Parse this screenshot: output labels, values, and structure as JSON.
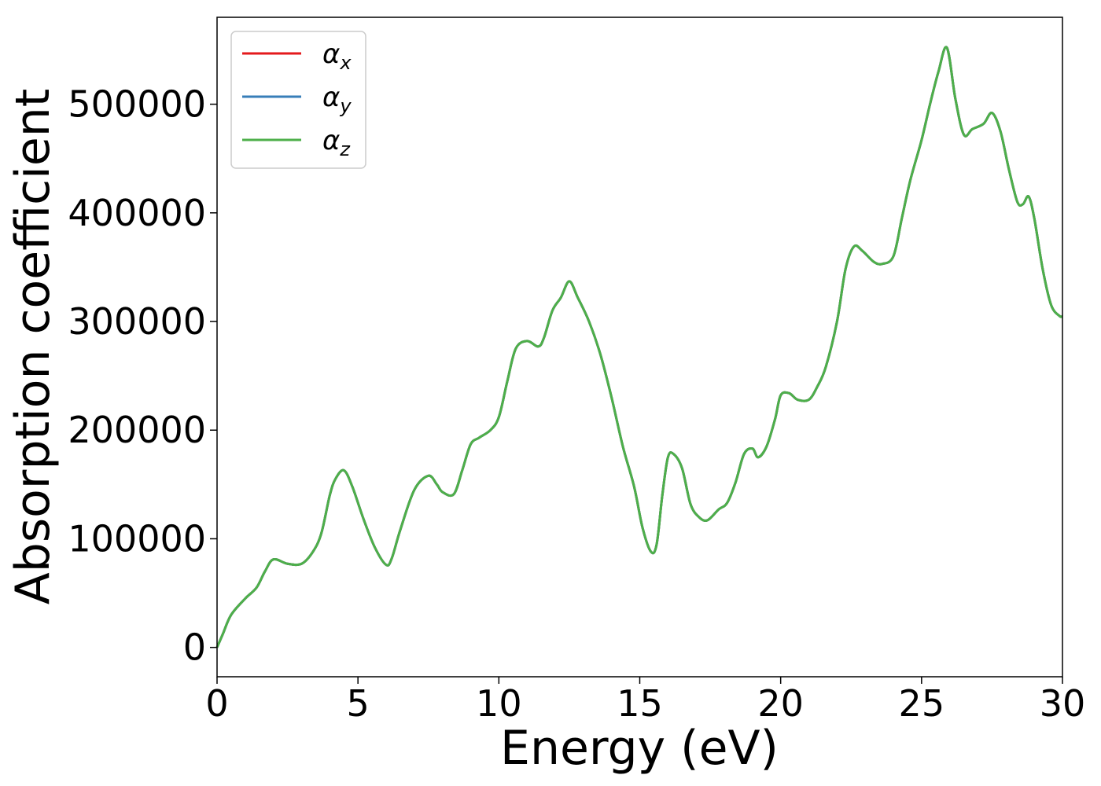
{
  "chart_data": {
    "type": "line",
    "xlabel": "Energy (eV)",
    "ylabel": "Absorption coefficient",
    "xlim": [
      0,
      30
    ],
    "ylim": [
      -27000,
      580000
    ],
    "xticks": [
      0,
      5,
      10,
      15,
      20,
      25,
      30
    ],
    "yticks": [
      0,
      100000,
      200000,
      300000,
      400000,
      500000
    ],
    "grid": false,
    "legend_position": "top-left",
    "x": [
      0,
      0.2,
      0.5,
      1.0,
      1.4,
      1.7,
      2.0,
      2.5,
      3.0,
      3.4,
      3.7,
      4.0,
      4.2,
      4.5,
      4.8,
      5.2,
      5.6,
      6.0,
      6.2,
      6.5,
      7.0,
      7.5,
      7.8,
      8.0,
      8.4,
      8.7,
      9.0,
      9.3,
      9.7,
      10.0,
      10.3,
      10.6,
      11.0,
      11.4,
      11.6,
      11.9,
      12.2,
      12.5,
      12.8,
      13.2,
      13.6,
      14.0,
      14.4,
      14.8,
      15.1,
      15.4,
      15.6,
      15.8,
      16.0,
      16.2,
      16.5,
      16.8,
      17.1,
      17.4,
      17.8,
      18.1,
      18.4,
      18.7,
      19.0,
      19.2,
      19.5,
      19.8,
      20.0,
      20.3,
      20.6,
      21.0,
      21.3,
      21.6,
      22.0,
      22.3,
      22.6,
      22.9,
      23.3,
      23.6,
      24.0,
      24.3,
      24.6,
      25.0,
      25.3,
      25.6,
      25.9,
      26.2,
      26.5,
      26.8,
      27.2,
      27.5,
      27.8,
      28.1,
      28.4,
      28.6,
      28.8,
      29.0,
      29.3,
      29.6,
      29.9,
      30.0
    ],
    "series": [
      {
        "name": "αx",
        "color": "#e41a1c",
        "values": [
          0,
          12000,
          30000,
          45000,
          55000,
          70000,
          81000,
          77000,
          77000,
          88000,
          105000,
          140000,
          155000,
          163000,
          148000,
          118000,
          92000,
          76000,
          82000,
          108000,
          145000,
          158000,
          150000,
          143000,
          141000,
          163000,
          187000,
          193000,
          200000,
          212000,
          245000,
          275000,
          282000,
          277000,
          285000,
          310000,
          322000,
          337000,
          322000,
          300000,
          270000,
          230000,
          185000,
          148000,
          110000,
          88000,
          95000,
          140000,
          175000,
          178000,
          165000,
          132000,
          120000,
          117000,
          127000,
          133000,
          152000,
          178000,
          183000,
          175000,
          185000,
          210000,
          232000,
          234000,
          228000,
          228000,
          240000,
          258000,
          300000,
          348000,
          369000,
          365000,
          355000,
          353000,
          360000,
          395000,
          430000,
          467000,
          500000,
          530000,
          552000,
          505000,
          472000,
          477000,
          482000,
          492000,
          475000,
          440000,
          410000,
          408000,
          415000,
          395000,
          348000,
          315000,
          305000,
          305000
        ]
      },
      {
        "name": "αy",
        "color": "#377eb8",
        "values": [
          0,
          12000,
          30000,
          45000,
          55000,
          70000,
          81000,
          77000,
          77000,
          88000,
          105000,
          140000,
          155000,
          163000,
          148000,
          118000,
          92000,
          76000,
          82000,
          108000,
          145000,
          158000,
          150000,
          143000,
          141000,
          163000,
          187000,
          193000,
          200000,
          212000,
          245000,
          275000,
          282000,
          277000,
          285000,
          310000,
          322000,
          337000,
          322000,
          300000,
          270000,
          230000,
          185000,
          148000,
          110000,
          88000,
          95000,
          140000,
          175000,
          178000,
          165000,
          132000,
          120000,
          117000,
          127000,
          133000,
          152000,
          178000,
          183000,
          175000,
          185000,
          210000,
          232000,
          234000,
          228000,
          228000,
          240000,
          258000,
          300000,
          348000,
          369000,
          365000,
          355000,
          353000,
          360000,
          395000,
          430000,
          467000,
          500000,
          530000,
          552000,
          505000,
          472000,
          477000,
          482000,
          492000,
          475000,
          440000,
          410000,
          408000,
          415000,
          395000,
          348000,
          315000,
          305000,
          305000
        ]
      },
      {
        "name": "αz",
        "color": "#4daf4a",
        "values": [
          0,
          12000,
          30000,
          45000,
          55000,
          70000,
          81000,
          77000,
          77000,
          88000,
          105000,
          140000,
          155000,
          163000,
          148000,
          118000,
          92000,
          76000,
          82000,
          108000,
          145000,
          158000,
          150000,
          143000,
          141000,
          163000,
          187000,
          193000,
          200000,
          212000,
          245000,
          275000,
          282000,
          277000,
          285000,
          310000,
          322000,
          337000,
          322000,
          300000,
          270000,
          230000,
          185000,
          148000,
          110000,
          88000,
          95000,
          140000,
          175000,
          178000,
          165000,
          132000,
          120000,
          117000,
          127000,
          133000,
          152000,
          178000,
          183000,
          175000,
          185000,
          210000,
          232000,
          234000,
          228000,
          228000,
          240000,
          258000,
          300000,
          348000,
          369000,
          365000,
          355000,
          353000,
          360000,
          395000,
          430000,
          467000,
          500000,
          530000,
          552000,
          505000,
          472000,
          477000,
          482000,
          492000,
          475000,
          440000,
          410000,
          408000,
          415000,
          395000,
          348000,
          315000,
          305000,
          305000
        ]
      }
    ],
    "legend": [
      {
        "symbol": "α",
        "sub": "x"
      },
      {
        "symbol": "α",
        "sub": "y"
      },
      {
        "symbol": "α",
        "sub": "z"
      }
    ]
  }
}
